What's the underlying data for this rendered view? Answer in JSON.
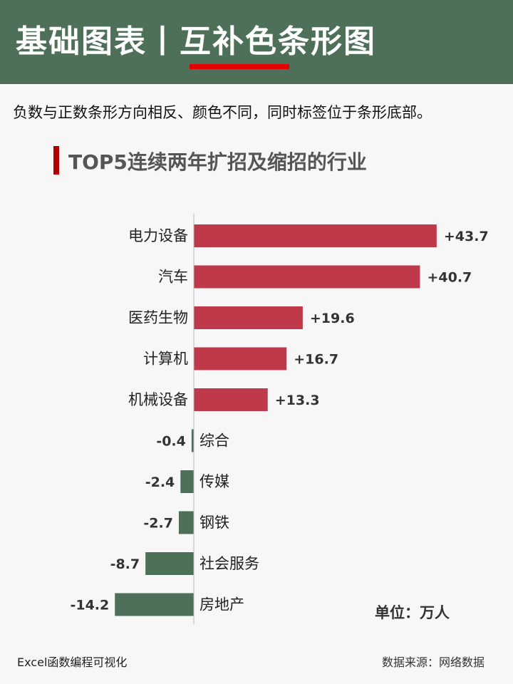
{
  "header": {
    "title": "基础图表丨互补色条形图"
  },
  "description": "负数与正数条形方向相反、颜色不同，同时标签位于条形底部。",
  "colors": {
    "header": "#4e7058",
    "positive": "#be3a4b",
    "negative": "#4e7058",
    "accent": "#e00000"
  },
  "chart_data": {
    "type": "bar",
    "orientation": "horizontal",
    "title": "TOP5连续两年扩招及缩招的行业",
    "categories": [
      "电力设备",
      "汽车",
      "医药生物",
      "计算机",
      "机械设备",
      "综合",
      "传媒",
      "钢铁",
      "社会服务",
      "房地产"
    ],
    "values": [
      43.7,
      40.7,
      19.6,
      16.7,
      13.3,
      -0.4,
      -2.4,
      -2.7,
      -8.7,
      -14.2
    ],
    "labels": [
      "+43.7",
      "+40.7",
      "+19.6",
      "+16.7",
      "+13.3",
      "-0.4",
      "-2.4",
      "-2.7",
      "-8.7",
      "-14.2"
    ],
    "unit": "单位：万人",
    "xlim": [
      -14.2,
      43.7
    ]
  },
  "footer": {
    "left": "Excel函数编程可视化",
    "right": "数据来源：网络数据"
  }
}
